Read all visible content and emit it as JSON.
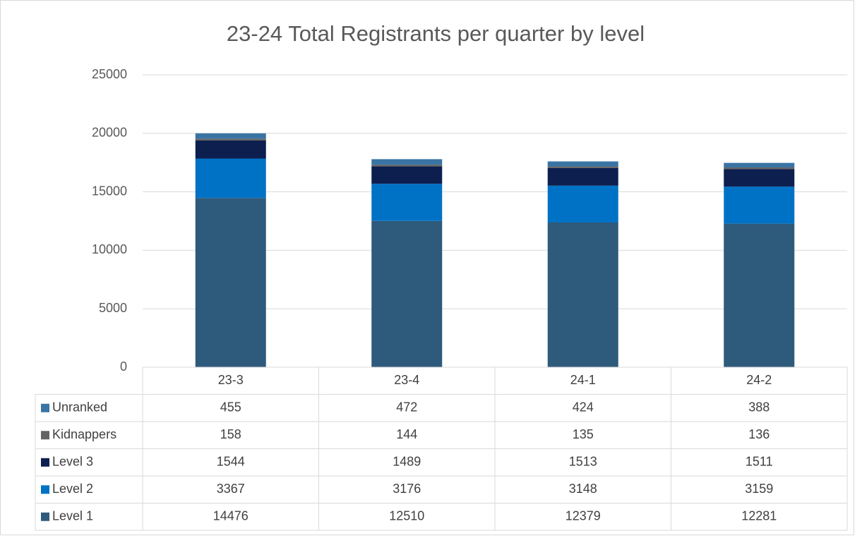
{
  "chart_data": {
    "type": "bar",
    "stacked": true,
    "title": "23-24 Total Registrants per quarter by level",
    "categories": [
      "23-3",
      "23-4",
      "24-1",
      "24-2"
    ],
    "series": [
      {
        "name": "Level 1",
        "color": "#2e5a7c",
        "values": [
          14476,
          12510,
          12379,
          12281
        ]
      },
      {
        "name": "Level 2",
        "color": "#0072c6",
        "values": [
          3367,
          3176,
          3148,
          3159
        ]
      },
      {
        "name": "Level 3",
        "color": "#0d1f4f",
        "values": [
          1544,
          1489,
          1513,
          1511
        ]
      },
      {
        "name": "Kidnappers",
        "color": "#646464",
        "values": [
          158,
          144,
          135,
          136
        ]
      },
      {
        "name": "Unranked",
        "color": "#3a74a4",
        "values": [
          455,
          472,
          424,
          388
        ]
      }
    ],
    "ylim": [
      0,
      25000
    ],
    "yticks": [
      0,
      5000,
      10000,
      15000,
      20000,
      25000
    ],
    "grid": true
  }
}
